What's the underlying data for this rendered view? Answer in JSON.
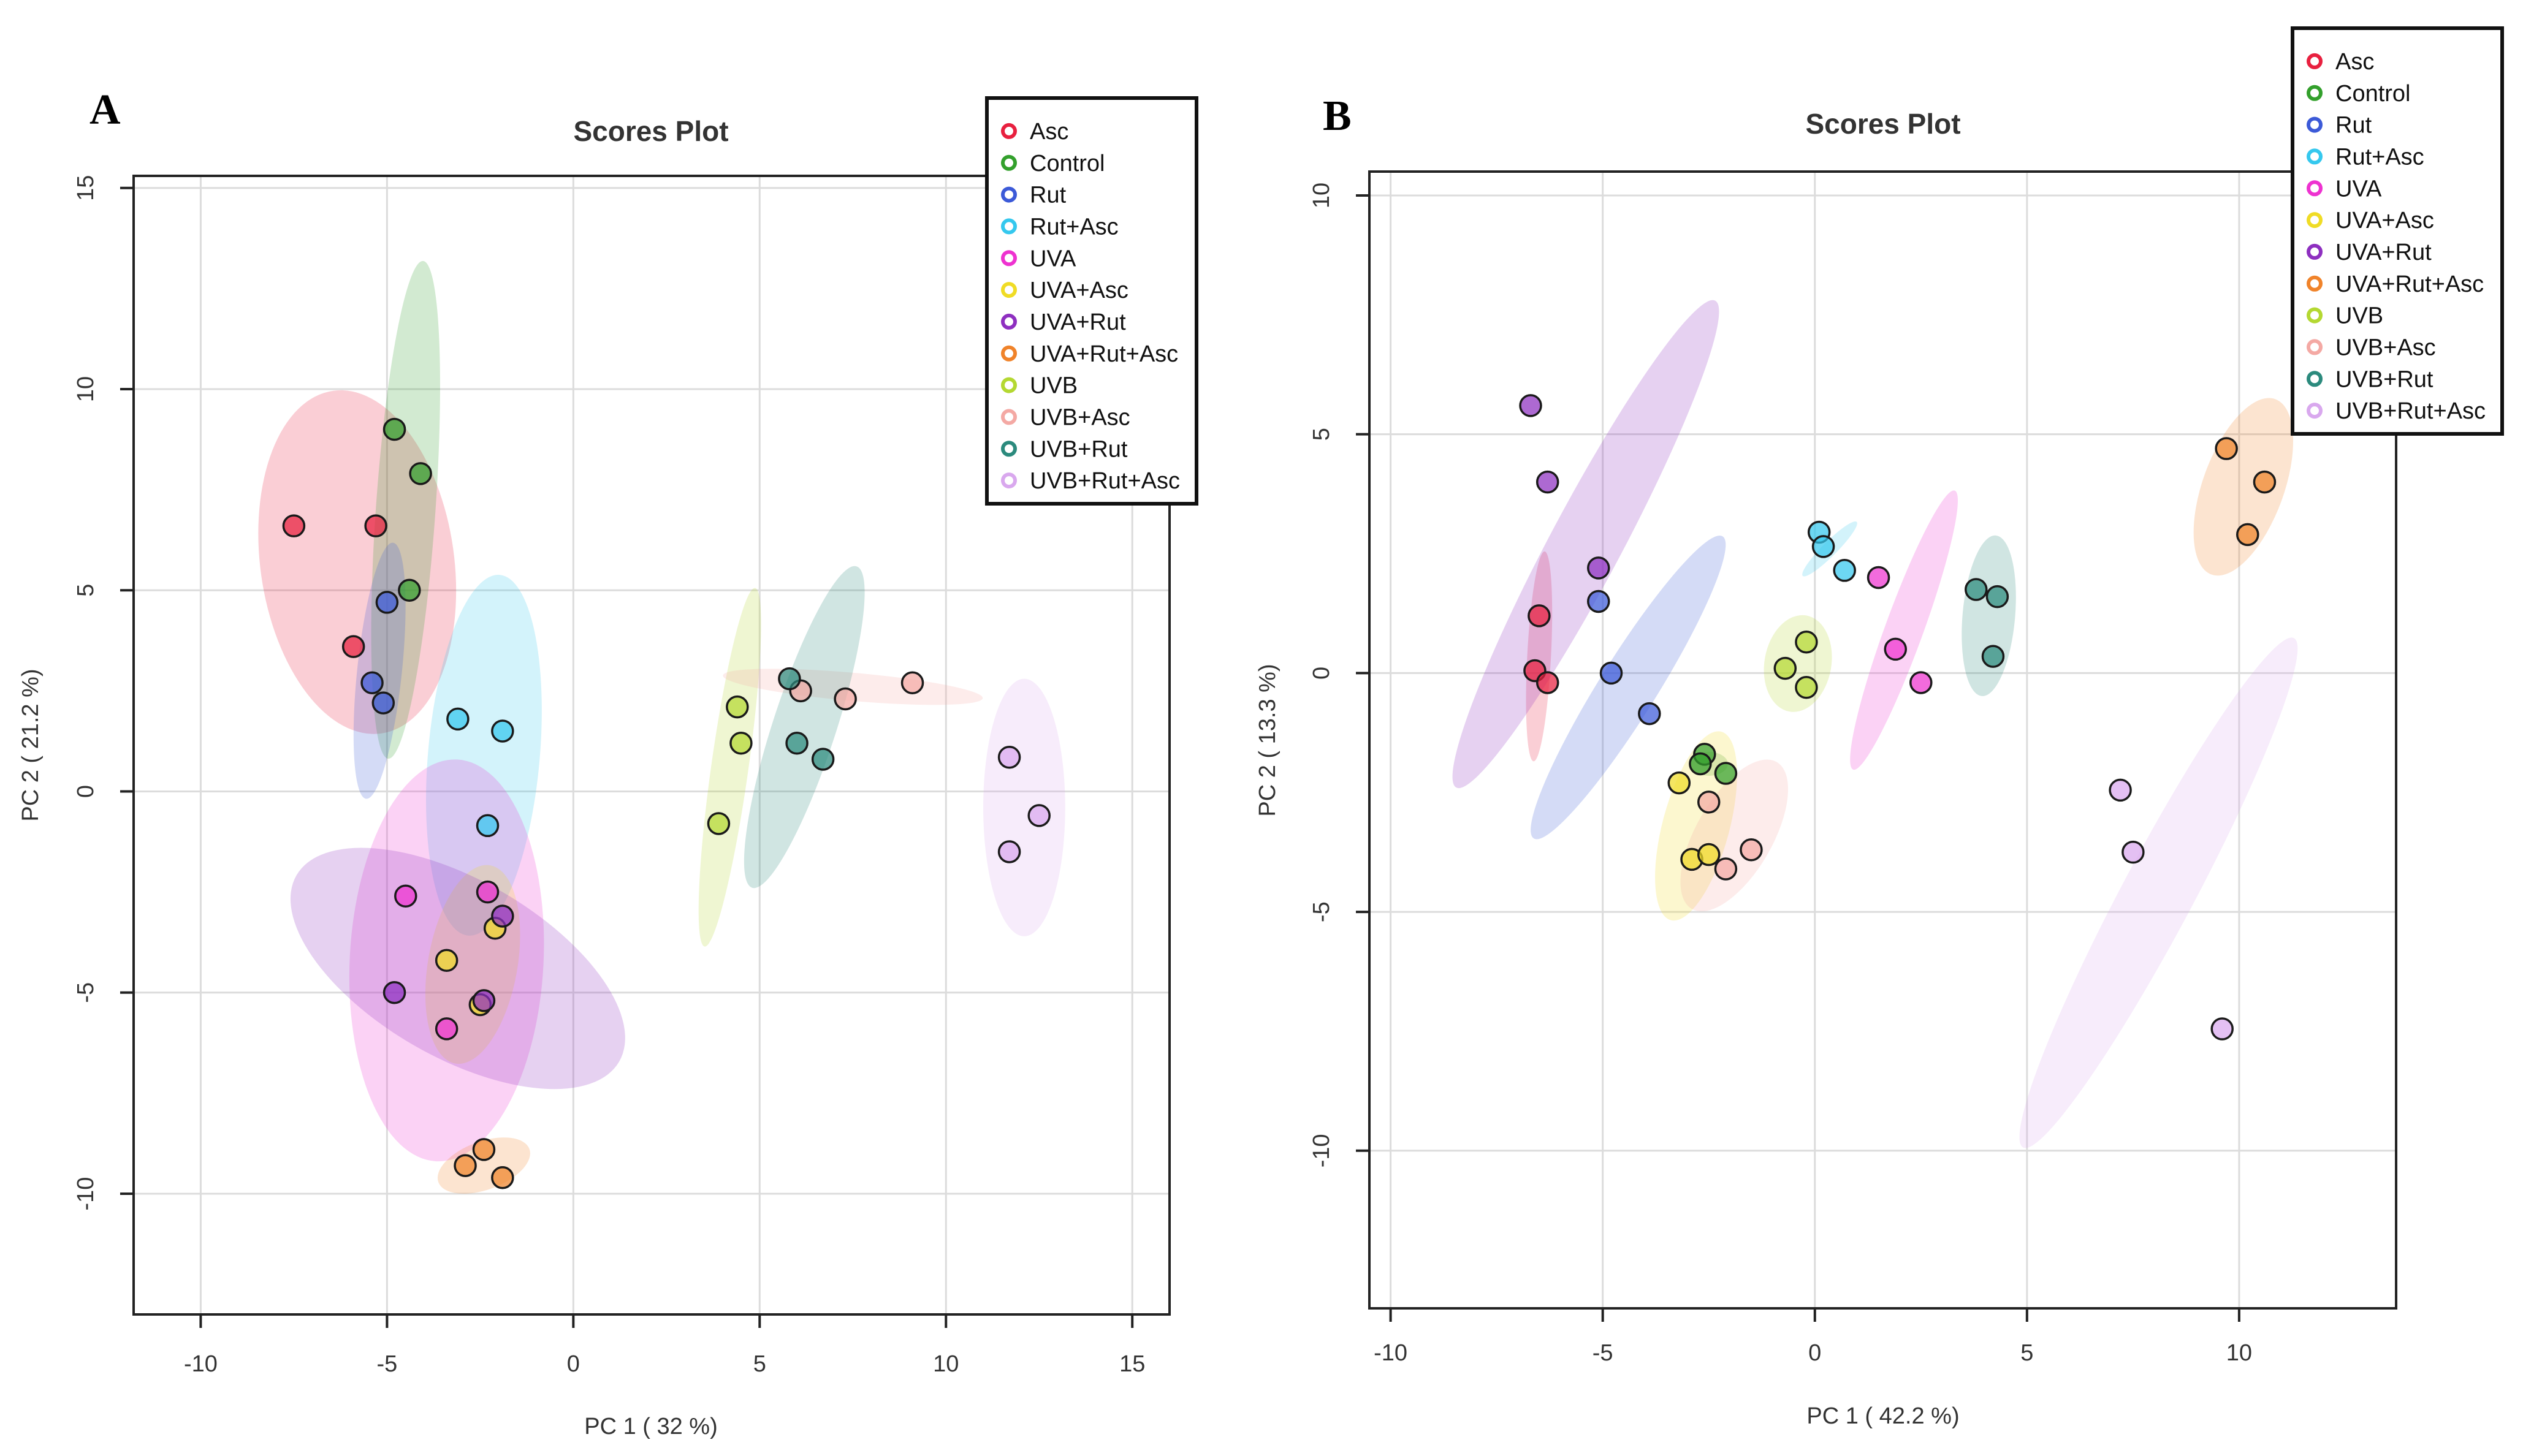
{
  "chart_data": [
    {
      "type": "scatter",
      "panel_label": "A",
      "title": "Scores Plot",
      "xlabel": "PC 1 ( 32 %)",
      "ylabel": "PC 2 ( 21.2 %)",
      "xlim": [
        -11.8,
        16.0
      ],
      "ylim": [
        -13.0,
        15.3
      ],
      "xticks": [
        -10,
        -5,
        0,
        5,
        10,
        15
      ],
      "yticks": [
        -10,
        -5,
        0,
        5,
        10,
        15
      ],
      "legend_position": "top-right",
      "series": [
        {
          "name": "Asc",
          "color": "#e8203f",
          "points": [
            [
              -7.5,
              6.6
            ],
            [
              -5.3,
              6.6
            ],
            [
              -5.9,
              3.6
            ]
          ],
          "ellipse": {
            "center": [
              -5.8,
              5.7
            ],
            "radius_x": 2.6,
            "radius_y": 4.3,
            "rotation_deg": -8
          }
        },
        {
          "name": "Control",
          "color": "#33a02c",
          "points": [
            [
              -4.8,
              9.0
            ],
            [
              -4.1,
              7.9
            ],
            [
              -4.4,
              5.0
            ]
          ],
          "ellipse": {
            "center": [
              -4.5,
              7.0
            ],
            "radius_x": 0.8,
            "radius_y": 6.2,
            "rotation_deg": 4
          }
        },
        {
          "name": "Rut",
          "color": "#3c5ad8",
          "points": [
            [
              -5.0,
              4.7
            ],
            [
              -5.4,
              2.7
            ],
            [
              -5.1,
              2.2
            ]
          ],
          "ellipse": {
            "center": [
              -5.2,
              3.0
            ],
            "radius_x": 0.6,
            "radius_y": 3.2,
            "rotation_deg": 6
          }
        },
        {
          "name": "Rut+Asc",
          "color": "#35c8ee",
          "points": [
            [
              -3.1,
              1.8
            ],
            [
              -1.9,
              1.5
            ],
            [
              -2.3,
              -0.85
            ]
          ],
          "ellipse": {
            "center": [
              -2.4,
              0.9
            ],
            "radius_x": 1.5,
            "radius_y": 4.5,
            "rotation_deg": 5
          }
        },
        {
          "name": "UVA",
          "color": "#ee32d0",
          "points": [
            [
              -4.5,
              -2.6
            ],
            [
              -2.3,
              -2.5
            ],
            [
              -3.4,
              -5.9
            ]
          ],
          "ellipse": {
            "center": [
              -3.4,
              -4.2
            ],
            "radius_x": 2.6,
            "radius_y": 5.0,
            "rotation_deg": 3
          }
        },
        {
          "name": "UVA+Asc",
          "color": "#f0dc25",
          "points": [
            [
              -2.1,
              -3.4
            ],
            [
              -3.4,
              -4.2
            ],
            [
              -2.5,
              -5.3
            ]
          ],
          "ellipse": {
            "center": [
              -2.7,
              -4.3
            ],
            "radius_x": 1.2,
            "radius_y": 2.5,
            "rotation_deg": 10
          }
        },
        {
          "name": "UVA+Rut",
          "color": "#8e2fc0",
          "points": [
            [
              -1.9,
              -3.1
            ],
            [
              -4.8,
              -5.0
            ],
            [
              -2.4,
              -5.2
            ]
          ],
          "ellipse": {
            "center": [
              -3.1,
              -4.4
            ],
            "radius_x": 5.0,
            "radius_y": 2.2,
            "rotation_deg": 30
          }
        },
        {
          "name": "UVA+Rut+Asc",
          "color": "#f0832a",
          "points": [
            [
              -2.4,
              -8.9
            ],
            [
              -2.9,
              -9.3
            ],
            [
              -1.9,
              -9.6
            ]
          ],
          "ellipse": {
            "center": [
              -2.4,
              -9.3
            ],
            "radius_x": 1.3,
            "radius_y": 0.6,
            "rotation_deg": -20
          }
        },
        {
          "name": "UVB",
          "color": "#b4d832",
          "points": [
            [
              4.4,
              2.1
            ],
            [
              4.5,
              1.2
            ],
            [
              3.9,
              -0.8
            ]
          ],
          "ellipse": {
            "center": [
              4.2,
              0.6
            ],
            "radius_x": 0.5,
            "radius_y": 4.5,
            "rotation_deg": 8
          }
        },
        {
          "name": "UVB+Asc",
          "color": "#f4a9a4",
          "points": [
            [
              6.1,
              2.5
            ],
            [
              7.3,
              2.3
            ],
            [
              9.1,
              2.7
            ]
          ],
          "ellipse": {
            "center": [
              7.5,
              2.6
            ],
            "radius_x": 3.5,
            "radius_y": 0.35,
            "rotation_deg": 5
          }
        },
        {
          "name": "UVB+Rut",
          "color": "#2b8a7d",
          "points": [
            [
              5.8,
              2.8
            ],
            [
              6.0,
              1.2
            ],
            [
              6.7,
              0.8
            ]
          ],
          "ellipse": {
            "center": [
              6.2,
              1.6
            ],
            "radius_x": 0.85,
            "radius_y": 4.2,
            "rotation_deg": 18
          }
        },
        {
          "name": "UVB+Rut+Asc",
          "color": "#d9a8ee",
          "points": [
            [
              11.7,
              0.85
            ],
            [
              12.5,
              -0.6
            ],
            [
              11.7,
              -1.5
            ]
          ],
          "ellipse": {
            "center": [
              12.1,
              -0.4
            ],
            "radius_x": 1.1,
            "radius_y": 3.2,
            "rotation_deg": 0
          }
        }
      ]
    },
    {
      "type": "scatter",
      "panel_label": "B",
      "title": "Scores Plot",
      "xlabel": "PC 1 ( 42.2 %)",
      "ylabel": "PC 2 ( 13.3 %)",
      "xlim": [
        -10.5,
        13.7
      ],
      "ylim": [
        -13.3,
        10.5
      ],
      "xticks": [
        -10,
        -5,
        0,
        5,
        10
      ],
      "yticks": [
        -10,
        -5,
        0,
        5,
        10
      ],
      "legend_position": "top-right",
      "series": [
        {
          "name": "Asc",
          "color": "#e8203f",
          "points": [
            [
              -6.5,
              1.2
            ],
            [
              -6.6,
              0.05
            ],
            [
              -6.3,
              -0.2
            ]
          ],
          "ellipse": {
            "center": [
              -6.5,
              0.35
            ],
            "radius_x": 0.28,
            "radius_y": 2.2,
            "rotation_deg": 3
          }
        },
        {
          "name": "Control",
          "color": "#33a02c",
          "points": [
            [
              -2.6,
              -1.7
            ],
            [
              -2.7,
              -1.9
            ],
            [
              -2.1,
              -2.1
            ]
          ],
          "ellipse": {
            "center": [
              -2.5,
              -1.9
            ],
            "radius_x": 0.45,
            "radius_y": 0.25,
            "rotation_deg": 0
          }
        },
        {
          "name": "Rut",
          "color": "#3c5ad8",
          "points": [
            [
              -5.1,
              1.5
            ],
            [
              -4.8,
              0.0
            ],
            [
              -3.9,
              -0.85
            ]
          ],
          "ellipse": {
            "center": [
              -4.4,
              -0.3
            ],
            "radius_x": 4.2,
            "radius_y": 0.6,
            "rotation_deg": -58
          }
        },
        {
          "name": "Rut+Asc",
          "color": "#35c8ee",
          "points": [
            [
              0.1,
              2.95
            ],
            [
              0.2,
              2.65
            ],
            [
              0.7,
              2.15
            ]
          ],
          "ellipse": {
            "center": [
              0.35,
              2.6
            ],
            "radius_x": 0.9,
            "radius_y": 0.15,
            "rotation_deg": -45
          }
        },
        {
          "name": "UVA",
          "color": "#ee32d0",
          "points": [
            [
              1.5,
              2.0
            ],
            [
              1.9,
              0.5
            ],
            [
              2.5,
              -0.2
            ]
          ],
          "ellipse": {
            "center": [
              2.1,
              0.9
            ],
            "radius_x": 3.5,
            "radius_y": 0.4,
            "rotation_deg": -70
          }
        },
        {
          "name": "UVA+Asc",
          "color": "#f0dc25",
          "points": [
            [
              -3.2,
              -2.3
            ],
            [
              -2.9,
              -3.9
            ],
            [
              -2.5,
              -3.8
            ]
          ],
          "ellipse": {
            "center": [
              -2.8,
              -3.2
            ],
            "radius_x": 2.3,
            "radius_y": 0.7,
            "rotation_deg": -75
          }
        },
        {
          "name": "UVA+Rut",
          "color": "#8e2fc0",
          "points": [
            [
              -6.7,
              5.6
            ],
            [
              -6.3,
              4.0
            ],
            [
              -5.1,
              2.2
            ]
          ],
          "ellipse": {
            "center": [
              -5.4,
              2.7
            ],
            "radius_x": 6.5,
            "radius_y": 0.75,
            "rotation_deg": -62
          }
        },
        {
          "name": "UVA+Rut+Asc",
          "color": "#f0832a",
          "points": [
            [
              9.7,
              4.7
            ],
            [
              10.6,
              4.0
            ],
            [
              10.2,
              2.9
            ]
          ],
          "ellipse": {
            "center": [
              10.1,
              3.9
            ],
            "radius_x": 2.2,
            "radius_y": 0.85,
            "rotation_deg": -70
          }
        },
        {
          "name": "UVB",
          "color": "#b4d832",
          "points": [
            [
              -0.2,
              0.65
            ],
            [
              -0.7,
              0.1
            ],
            [
              -0.2,
              -0.3
            ]
          ],
          "ellipse": {
            "center": [
              -0.4,
              0.2
            ],
            "radius_x": 1.15,
            "radius_y": 0.7,
            "rotation_deg": -80
          }
        },
        {
          "name": "UVB+Asc",
          "color": "#f4a9a4",
          "points": [
            [
              -2.5,
              -2.7
            ],
            [
              -2.1,
              -4.1
            ],
            [
              -1.5,
              -3.7
            ]
          ],
          "ellipse": {
            "center": [
              -1.9,
              -3.4
            ],
            "radius_x": 2.0,
            "radius_y": 0.8,
            "rotation_deg": -60
          }
        },
        {
          "name": "UVB+Rut",
          "color": "#2b8a7d",
          "points": [
            [
              3.8,
              1.75
            ],
            [
              4.3,
              1.6
            ],
            [
              4.2,
              0.35
            ]
          ],
          "ellipse": {
            "center": [
              4.1,
              1.2
            ],
            "radius_x": 1.9,
            "radius_y": 0.55,
            "rotation_deg": -85
          }
        },
        {
          "name": "UVB+Rut+Asc",
          "color": "#d9a8ee",
          "points": [
            [
              7.2,
              -2.45
            ],
            [
              7.5,
              -3.75
            ],
            [
              9.6,
              -7.45
            ]
          ],
          "ellipse": {
            "center": [
              8.1,
              -4.6
            ],
            "radius_x": 6.8,
            "radius_y": 0.75,
            "rotation_deg": -62
          }
        }
      ]
    }
  ]
}
